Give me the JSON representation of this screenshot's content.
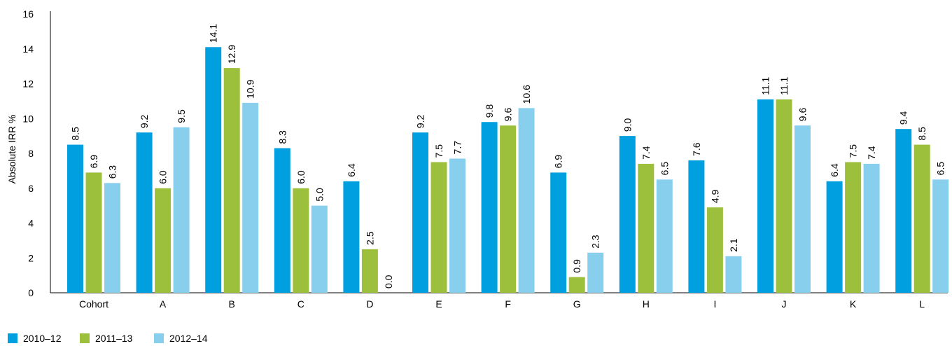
{
  "chart_data": {
    "type": "bar",
    "title": "",
    "xlabel": "",
    "ylabel": "Absolute IRR %",
    "ylim": [
      0,
      16
    ],
    "yticks": [
      0,
      2,
      4,
      6,
      8,
      10,
      12,
      14,
      16
    ],
    "grid": false,
    "legend_position": "bottom-left",
    "categories": [
      "Cohort",
      "A",
      "B",
      "C",
      "D",
      "E",
      "F",
      "G",
      "H",
      "I",
      "J",
      "K",
      "L"
    ],
    "series": [
      {
        "name": "2010–12",
        "color": "#009fdf",
        "values": [
          8.5,
          9.2,
          14.1,
          8.3,
          6.4,
          9.2,
          9.8,
          6.9,
          9.0,
          7.6,
          11.1,
          6.4,
          9.4
        ],
        "labels": [
          "8.5",
          "9.2",
          "14.1",
          "8.3",
          "6.4",
          "9.2",
          "9.8",
          "6.9",
          "9.0",
          "7.6",
          "11.1",
          "6.4",
          "9.4"
        ]
      },
      {
        "name": "2011–13",
        "color": "#9dc03c",
        "values": [
          6.9,
          6.0,
          12.9,
          6.0,
          2.5,
          7.5,
          9.6,
          0.9,
          7.4,
          4.9,
          11.1,
          7.5,
          8.5
        ],
        "labels": [
          "6.9",
          "6.0",
          "12.9",
          "6.0",
          "2.5",
          "7.5",
          "9.6",
          "0.9",
          "7.4",
          "4.9",
          "11.1",
          "7.5",
          "8.5"
        ]
      },
      {
        "name": "2012–14",
        "color": "#88cfee",
        "values": [
          6.3,
          9.5,
          10.9,
          5.0,
          0.0,
          7.7,
          10.6,
          2.3,
          6.5,
          2.1,
          9.6,
          7.4,
          6.5
        ],
        "labels": [
          "6.3",
          "9.5",
          "10.9",
          "5.0",
          "0.0",
          "7.7",
          "10.6",
          "2.3",
          "6.5",
          "2.1",
          "9.6",
          "7.4",
          "6.5"
        ]
      }
    ]
  }
}
